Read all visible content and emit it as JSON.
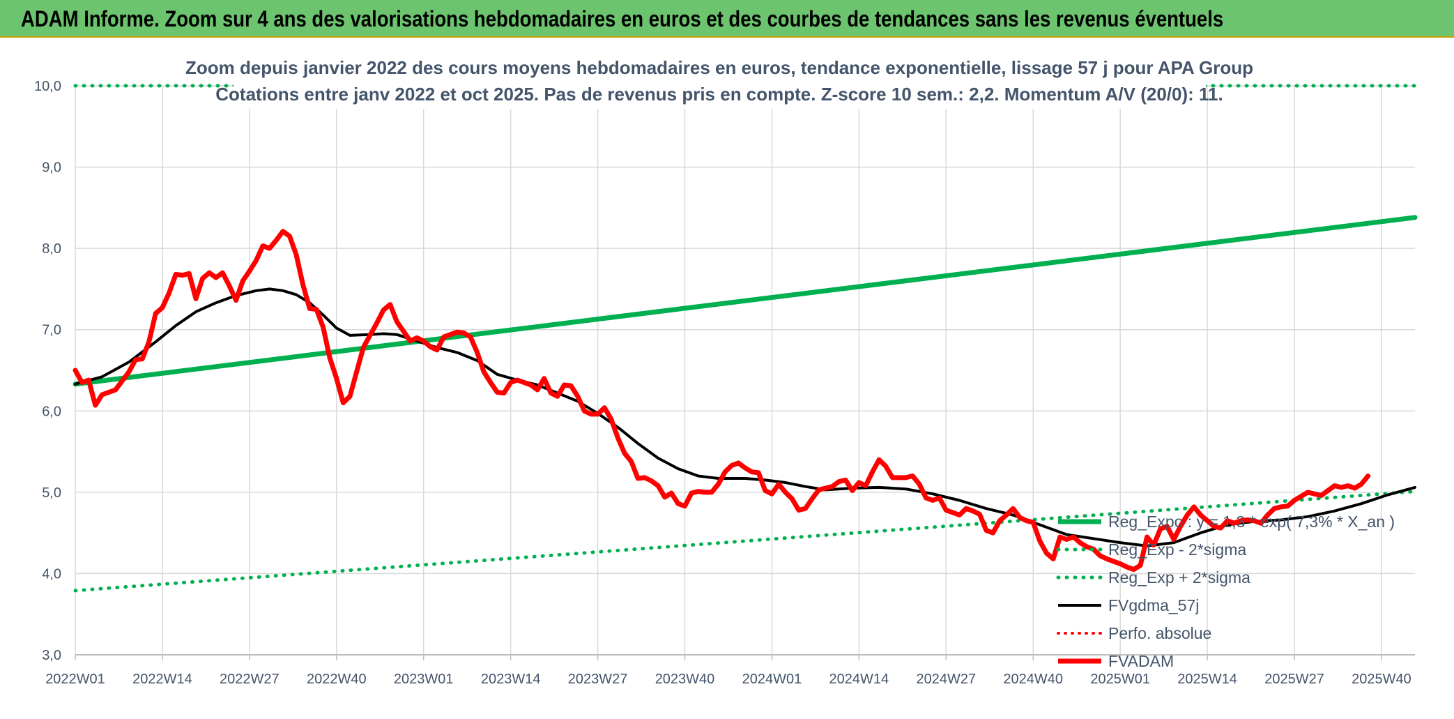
{
  "banner": {
    "title": "ADAM Informe. Zoom sur 4 ans des valorisations hebdomadaires en euros et des courbes de tendances sans les revenus éventuels"
  },
  "colors": {
    "banner_bg": "#6cc46e",
    "reg_expo": "#00b050",
    "dotted_band": "#00b050",
    "fvgdma": "#000000",
    "perfo": "#ff0000",
    "fvadam": "#ff0000",
    "axis_text": "#44546a",
    "grid": "#d9d9d9"
  },
  "chart_data": {
    "type": "line",
    "title_line1": "Zoom depuis janvier 2022 des cours moyens hebdomadaires en euros, tendance exponentielle, lissage 57 j pour APA Group",
    "title_line2": "Cotations entre janv 2022 et oct 2025. Pas de revenus pris en compte. Z-score 10 sem.: 2,2. Momentum A/V (20/0): 11.",
    "xlabel": "",
    "ylabel": "",
    "ylim": [
      3.0,
      10.0
    ],
    "yticks": [
      "3,0",
      "4,0",
      "5,0",
      "6,0",
      "7,0",
      "8,0",
      "9,0",
      "10,0"
    ],
    "ytick_values": [
      3,
      4,
      5,
      6,
      7,
      8,
      9,
      10
    ],
    "xticks": [
      "2022W01",
      "2022W14",
      "2022W27",
      "2022W40",
      "2023W01",
      "2023W14",
      "2023W27",
      "2023W40",
      "2024W01",
      "2024W14",
      "2024W27",
      "2024W40",
      "2025W01",
      "2025W14",
      "2025W27",
      "2025W40"
    ],
    "xtick_weeks": [
      0,
      13,
      26,
      39,
      52,
      65,
      78,
      91,
      104,
      117,
      130,
      143,
      156,
      169,
      182,
      195
    ],
    "x_last_week": 200,
    "grid": true,
    "legend_position": "bottom-right",
    "series": [
      {
        "name": "Reg_Expo : y = 1,3 * exp( 7,3% *  X_an )",
        "style": "solid-thick",
        "points": [
          [
            0,
            6.33
          ],
          [
            200,
            8.38
          ]
        ]
      },
      {
        "name": "Reg_Exp - 2*sigma",
        "style": "dotted",
        "points": [
          [
            0,
            3.79
          ],
          [
            200,
            5.01
          ]
        ]
      },
      {
        "name": "Reg_Exp + 2*sigma",
        "style": "dotted",
        "points": [
          [
            0,
            10.0
          ],
          [
            200,
            10.0
          ]
        ]
      },
      {
        "name": "FVgdma_57j",
        "style": "solid",
        "points": [
          [
            0,
            6.33
          ],
          [
            4,
            6.42
          ],
          [
            8,
            6.6
          ],
          [
            12,
            6.85
          ],
          [
            15,
            7.05
          ],
          [
            18,
            7.22
          ],
          [
            21,
            7.33
          ],
          [
            24,
            7.42
          ],
          [
            27,
            7.48
          ],
          [
            29,
            7.5
          ],
          [
            31,
            7.48
          ],
          [
            33,
            7.43
          ],
          [
            35,
            7.33
          ],
          [
            37,
            7.18
          ],
          [
            39,
            7.02
          ],
          [
            41,
            6.93
          ],
          [
            44,
            6.94
          ],
          [
            46,
            6.95
          ],
          [
            48,
            6.94
          ],
          [
            51,
            6.86
          ],
          [
            54,
            6.78
          ],
          [
            57,
            6.72
          ],
          [
            60,
            6.62
          ],
          [
            63,
            6.45
          ],
          [
            66,
            6.38
          ],
          [
            69,
            6.32
          ],
          [
            72,
            6.22
          ],
          [
            75,
            6.12
          ],
          [
            78,
            5.97
          ],
          [
            81,
            5.8
          ],
          [
            84,
            5.6
          ],
          [
            87,
            5.42
          ],
          [
            90,
            5.29
          ],
          [
            93,
            5.2
          ],
          [
            96,
            5.17
          ],
          [
            100,
            5.17
          ],
          [
            103,
            5.15
          ],
          [
            106,
            5.12
          ],
          [
            109,
            5.07
          ],
          [
            112,
            5.03
          ],
          [
            116,
            5.05
          ],
          [
            120,
            5.06
          ],
          [
            124,
            5.04
          ],
          [
            128,
            4.98
          ],
          [
            132,
            4.9
          ],
          [
            136,
            4.8
          ],
          [
            140,
            4.72
          ],
          [
            144,
            4.6
          ],
          [
            148,
            4.48
          ],
          [
            152,
            4.43
          ],
          [
            156,
            4.38
          ],
          [
            160,
            4.34
          ],
          [
            164,
            4.38
          ],
          [
            168,
            4.5
          ],
          [
            172,
            4.6
          ],
          [
            176,
            4.64
          ],
          [
            180,
            4.66
          ],
          [
            184,
            4.7
          ],
          [
            188,
            4.77
          ],
          [
            192,
            4.86
          ],
          [
            196,
            4.97
          ],
          [
            200,
            5.06
          ]
        ]
      },
      {
        "name": "Perfo. absolue",
        "style": "dotted-red",
        "points": []
      },
      {
        "name": "FVADAM",
        "style": "solid-thick",
        "points": [
          [
            0,
            6.5
          ],
          [
            1,
            6.35
          ],
          [
            2,
            6.38
          ],
          [
            3,
            6.07
          ],
          [
            4,
            6.2
          ],
          [
            6,
            6.26
          ],
          [
            8,
            6.48
          ],
          [
            9,
            6.63
          ],
          [
            10,
            6.64
          ],
          [
            11,
            6.85
          ],
          [
            12,
            7.2
          ],
          [
            13,
            7.27
          ],
          [
            14,
            7.45
          ],
          [
            15,
            7.68
          ],
          [
            16,
            7.67
          ],
          [
            17,
            7.69
          ],
          [
            18,
            7.38
          ],
          [
            19,
            7.63
          ],
          [
            20,
            7.7
          ],
          [
            21,
            7.64
          ],
          [
            22,
            7.7
          ],
          [
            23,
            7.54
          ],
          [
            24,
            7.36
          ],
          [
            25,
            7.6
          ],
          [
            26,
            7.72
          ],
          [
            27,
            7.85
          ],
          [
            28,
            8.03
          ],
          [
            29,
            8.0
          ],
          [
            30,
            8.1
          ],
          [
            31,
            8.21
          ],
          [
            32,
            8.15
          ],
          [
            33,
            7.92
          ],
          [
            34,
            7.55
          ],
          [
            35,
            7.26
          ],
          [
            36,
            7.25
          ],
          [
            37,
            7.03
          ],
          [
            38,
            6.65
          ],
          [
            39,
            6.4
          ],
          [
            40,
            6.1
          ],
          [
            41,
            6.18
          ],
          [
            42,
            6.48
          ],
          [
            43,
            6.78
          ],
          [
            44,
            6.93
          ],
          [
            45,
            7.08
          ],
          [
            46,
            7.24
          ],
          [
            47,
            7.31
          ],
          [
            48,
            7.1
          ],
          [
            49,
            6.98
          ],
          [
            50,
            6.86
          ],
          [
            51,
            6.9
          ],
          [
            52,
            6.86
          ],
          [
            53,
            6.79
          ],
          [
            54,
            6.75
          ],
          [
            55,
            6.91
          ],
          [
            56,
            6.94
          ],
          [
            57,
            6.97
          ],
          [
            58,
            6.96
          ],
          [
            59,
            6.91
          ],
          [
            60,
            6.72
          ],
          [
            61,
            6.48
          ],
          [
            62,
            6.35
          ],
          [
            63,
            6.23
          ],
          [
            64,
            6.22
          ],
          [
            65,
            6.35
          ],
          [
            66,
            6.38
          ],
          [
            67,
            6.35
          ],
          [
            68,
            6.32
          ],
          [
            69,
            6.26
          ],
          [
            70,
            6.4
          ],
          [
            71,
            6.22
          ],
          [
            72,
            6.18
          ],
          [
            73,
            6.32
          ],
          [
            74,
            6.31
          ],
          [
            75,
            6.18
          ],
          [
            76,
            6.0
          ],
          [
            77,
            5.96
          ],
          [
            78,
            5.96
          ],
          [
            79,
            6.04
          ],
          [
            80,
            5.9
          ],
          [
            81,
            5.67
          ],
          [
            82,
            5.48
          ],
          [
            83,
            5.38
          ],
          [
            84,
            5.17
          ],
          [
            85,
            5.18
          ],
          [
            86,
            5.14
          ],
          [
            87,
            5.08
          ],
          [
            88,
            4.94
          ],
          [
            89,
            4.99
          ],
          [
            90,
            4.86
          ],
          [
            91,
            4.83
          ],
          [
            92,
            4.99
          ],
          [
            93,
            5.01
          ],
          [
            94,
            5.0
          ],
          [
            95,
            5.0
          ],
          [
            96,
            5.1
          ],
          [
            97,
            5.25
          ],
          [
            98,
            5.33
          ],
          [
            99,
            5.36
          ],
          [
            100,
            5.3
          ],
          [
            101,
            5.25
          ],
          [
            102,
            5.24
          ],
          [
            103,
            5.02
          ],
          [
            104,
            4.98
          ],
          [
            105,
            5.1
          ],
          [
            106,
            5.0
          ],
          [
            107,
            4.92
          ],
          [
            108,
            4.78
          ],
          [
            109,
            4.8
          ],
          [
            110,
            4.92
          ],
          [
            111,
            5.03
          ],
          [
            112,
            5.05
          ],
          [
            113,
            5.07
          ],
          [
            114,
            5.13
          ],
          [
            115,
            5.15
          ],
          [
            116,
            5.02
          ],
          [
            117,
            5.12
          ],
          [
            118,
            5.08
          ],
          [
            119,
            5.25
          ],
          [
            120,
            5.4
          ],
          [
            121,
            5.32
          ],
          [
            122,
            5.18
          ],
          [
            123,
            5.18
          ],
          [
            124,
            5.18
          ],
          [
            125,
            5.2
          ],
          [
            126,
            5.1
          ],
          [
            127,
            4.93
          ],
          [
            128,
            4.9
          ],
          [
            129,
            4.93
          ],
          [
            130,
            4.78
          ],
          [
            131,
            4.75
          ],
          [
            132,
            4.72
          ],
          [
            133,
            4.8
          ],
          [
            134,
            4.77
          ],
          [
            135,
            4.73
          ],
          [
            136,
            4.53
          ],
          [
            137,
            4.5
          ],
          [
            138,
            4.65
          ],
          [
            139,
            4.72
          ],
          [
            140,
            4.8
          ],
          [
            141,
            4.69
          ],
          [
            142,
            4.65
          ],
          [
            143,
            4.63
          ],
          [
            144,
            4.4
          ],
          [
            145,
            4.25
          ],
          [
            146,
            4.18
          ],
          [
            147,
            4.45
          ],
          [
            148,
            4.42
          ],
          [
            149,
            4.45
          ],
          [
            150,
            4.38
          ],
          [
            151,
            4.33
          ],
          [
            152,
            4.3
          ],
          [
            153,
            4.22
          ],
          [
            154,
            4.18
          ],
          [
            155,
            4.15
          ],
          [
            156,
            4.12
          ],
          [
            157,
            4.08
          ],
          [
            158,
            4.05
          ],
          [
            159,
            4.1
          ],
          [
            160,
            4.45
          ],
          [
            161,
            4.35
          ],
          [
            162,
            4.55
          ],
          [
            163,
            4.58
          ],
          [
            164,
            4.42
          ],
          [
            165,
            4.58
          ],
          [
            166,
            4.72
          ],
          [
            167,
            4.82
          ],
          [
            168,
            4.72
          ],
          [
            169,
            4.65
          ],
          [
            170,
            4.58
          ],
          [
            171,
            4.56
          ],
          [
            172,
            4.65
          ],
          [
            173,
            4.62
          ],
          [
            174,
            4.65
          ],
          [
            175,
            4.66
          ],
          [
            176,
            4.65
          ],
          [
            177,
            4.62
          ],
          [
            178,
            4.72
          ],
          [
            179,
            4.8
          ],
          [
            180,
            4.82
          ],
          [
            181,
            4.83
          ],
          [
            182,
            4.9
          ],
          [
            183,
            4.95
          ],
          [
            184,
            5.0
          ],
          [
            185,
            4.98
          ],
          [
            186,
            4.96
          ],
          [
            187,
            5.02
          ],
          [
            188,
            5.08
          ],
          [
            189,
            5.06
          ],
          [
            190,
            5.08
          ],
          [
            191,
            5.05
          ],
          [
            192,
            5.1
          ],
          [
            193,
            5.2
          ]
        ]
      }
    ]
  }
}
